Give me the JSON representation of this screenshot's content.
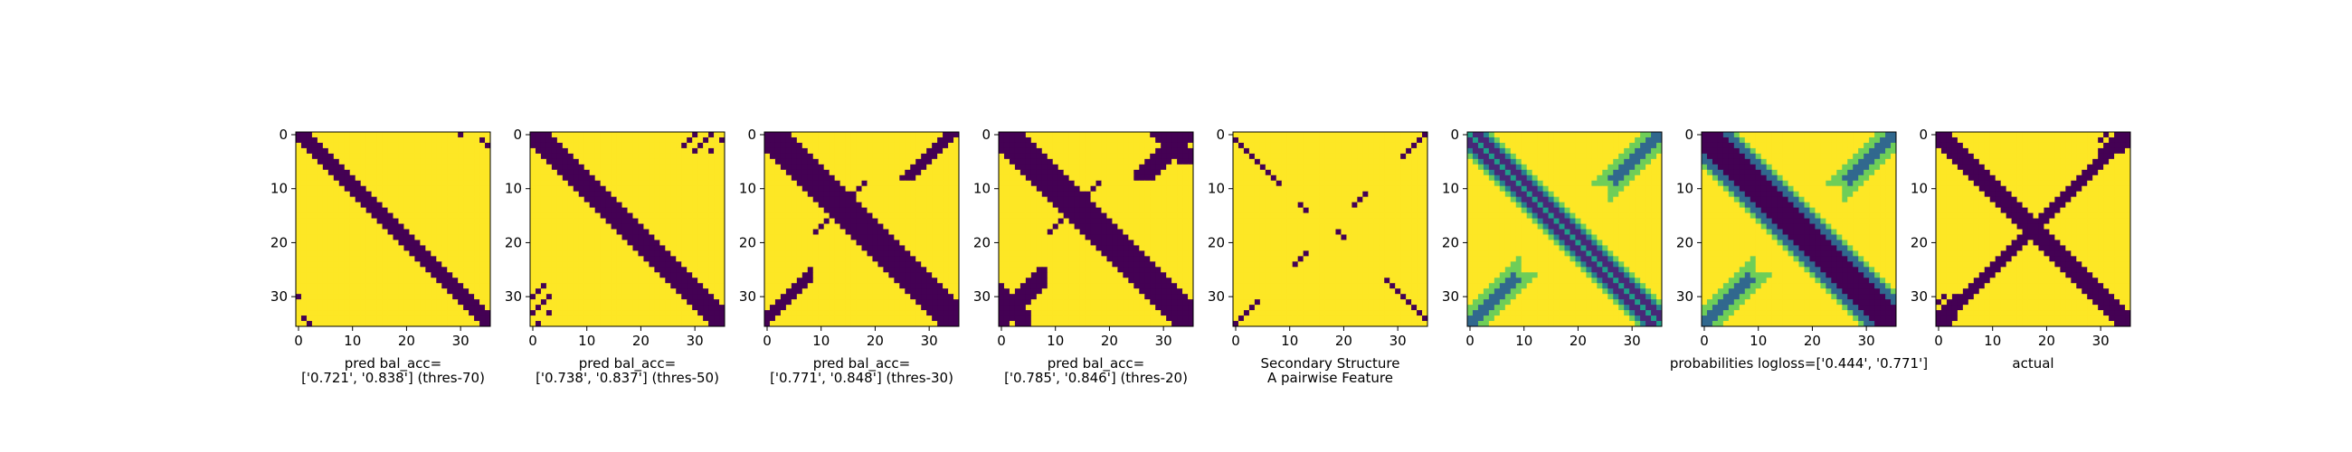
{
  "chart_data": [
    {
      "type": "heatmap",
      "caption": [
        "pred bal_acc=",
        "['0.721', '0.838'] (thres-70)"
      ],
      "render": "binary",
      "pattern": {
        "band": [
          -1,
          2
        ],
        "ur": "sparse_a",
        "ll": "sparse_a"
      },
      "x_ticks": [
        0,
        10,
        20,
        30
      ],
      "y_ticks": [
        0,
        10,
        20,
        30
      ],
      "size": 36
    },
    {
      "type": "heatmap",
      "caption": [
        "pred bal_acc=",
        "['0.738', '0.837'] (thres-50)"
      ],
      "render": "binary",
      "pattern": {
        "band": [
          -2,
          3
        ],
        "ur": "sparse_b",
        "ll": "sparse_b"
      },
      "x_ticks": [
        0,
        10,
        20,
        30
      ],
      "y_ticks": [
        0,
        10,
        20,
        30
      ],
      "size": 36
    },
    {
      "type": "heatmap",
      "caption": [
        "pred bal_acc=",
        "['0.771', '0.848'] (thres-30)"
      ],
      "render": "binary",
      "pattern": {
        "band": [
          -3,
          4
        ],
        "ur": "strands",
        "ll": "strands"
      },
      "x_ticks": [
        0,
        10,
        20,
        30
      ],
      "y_ticks": [
        0,
        10,
        20,
        30
      ],
      "size": 36
    },
    {
      "type": "heatmap",
      "caption": [
        "pred bal_acc=",
        "['0.785', '0.846'] (thres-20)"
      ],
      "render": "binary",
      "pattern": {
        "band": [
          -3,
          4
        ],
        "ur": "strands_wide",
        "ll": "strands_wide"
      },
      "x_ticks": [
        0,
        10,
        20,
        30
      ],
      "y_ticks": [
        0,
        10,
        20,
        30
      ],
      "size": 36
    },
    {
      "type": "heatmap",
      "caption": [
        "Secondary Structure",
        "A pairwise Feature"
      ],
      "render": "ss",
      "pattern": {},
      "x_ticks": [
        0,
        10,
        20,
        30
      ],
      "y_ticks": [
        0,
        10,
        20,
        30
      ],
      "size": 36
    },
    {
      "type": "heatmap",
      "caption": [
        ""
      ],
      "render": "viridis_a",
      "pattern": {},
      "x_ticks": [
        0,
        10,
        20,
        30
      ],
      "y_ticks": [
        0,
        10,
        20,
        30
      ],
      "size": 36
    },
    {
      "type": "heatmap",
      "caption": [
        "probabilities logloss=['0.444', '0.771']"
      ],
      "render": "viridis_b",
      "pattern": {},
      "x_ticks": [
        0,
        10,
        20,
        30
      ],
      "y_ticks": [
        0,
        10,
        20,
        30
      ],
      "size": 36
    },
    {
      "type": "heatmap",
      "caption": [
        "actual"
      ],
      "render": "actual",
      "pattern": {},
      "x_ticks": [
        0,
        10,
        20,
        30
      ],
      "y_ticks": [
        0,
        10,
        20,
        30
      ],
      "size": 36
    }
  ],
  "colors": {
    "low": "#440154",
    "high": "#fde725"
  }
}
